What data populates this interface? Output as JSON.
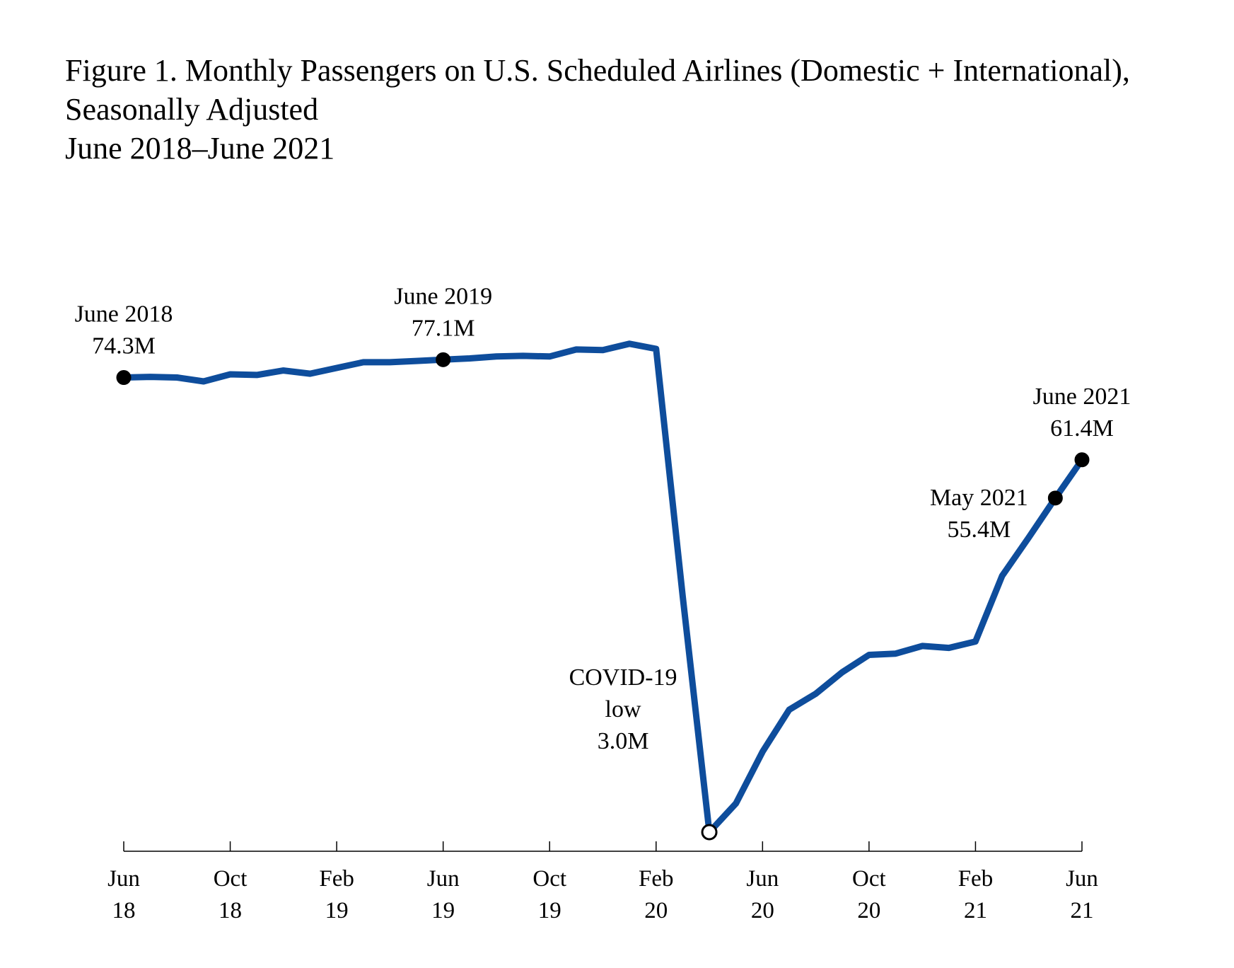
{
  "chart_data": {
    "type": "line",
    "title_lines": [
      "Figure 1. Monthly Passengers on U.S. Scheduled Airlines (Domestic + International),",
      "Seasonally Adjusted",
      "June 2018–June 2021"
    ],
    "xlabel": "",
    "ylabel": "",
    "unit": "millions of passengers",
    "ylim": [
      0,
      82
    ],
    "grid": false,
    "legend": "none",
    "series": [
      {
        "name": "Monthly passengers (seasonally adjusted)",
        "color": "#0e4d9c",
        "x": [
          "Jun 2018",
          "Jul 2018",
          "Aug 2018",
          "Sep 2018",
          "Oct 2018",
          "Nov 2018",
          "Dec 2018",
          "Jan 2019",
          "Feb 2019",
          "Mar 2019",
          "Apr 2019",
          "May 2019",
          "Jun 2019",
          "Jul 2019",
          "Aug 2019",
          "Sep 2019",
          "Oct 2019",
          "Nov 2019",
          "Dec 2019",
          "Jan 2020",
          "Feb 2020",
          "Mar 2020",
          "Apr 2020",
          "May 2020",
          "Jun 2020",
          "Jul 2020",
          "Aug 2020",
          "Sep 2020",
          "Oct 2020",
          "Nov 2020",
          "Dec 2020",
          "Jan 2021",
          "Feb 2021",
          "Mar 2021",
          "Apr 2021",
          "May 2021",
          "Jun 2021"
        ],
        "values": [
          74.3,
          74.4,
          74.3,
          73.7,
          74.8,
          74.7,
          75.4,
          74.9,
          75.8,
          76.7,
          76.7,
          76.9,
          77.1,
          77.3,
          77.6,
          77.7,
          77.6,
          78.7,
          78.6,
          79.6,
          78.8,
          40.0,
          3.0,
          7.5,
          15.6,
          22.2,
          24.7,
          28.1,
          30.8,
          31.0,
          32.2,
          31.9,
          32.9,
          43.2,
          49.2,
          55.4,
          61.4
        ]
      }
    ],
    "x_ticks": [
      {
        "month": "Jun",
        "year": "18",
        "index": 0
      },
      {
        "month": "Oct",
        "year": "18",
        "index": 4
      },
      {
        "month": "Feb",
        "year": "19",
        "index": 8
      },
      {
        "month": "Jun",
        "year": "19",
        "index": 12
      },
      {
        "month": "Oct",
        "year": "19",
        "index": 16
      },
      {
        "month": "Feb",
        "year": "20",
        "index": 20
      },
      {
        "month": "Jun",
        "year": "20",
        "index": 24
      },
      {
        "month": "Oct",
        "year": "20",
        "index": 28
      },
      {
        "month": "Feb",
        "year": "21",
        "index": 32
      },
      {
        "month": "Jun",
        "year": "21",
        "index": 36
      }
    ],
    "annotations": [
      {
        "index": 0,
        "lines": [
          "June 2018",
          "74.3M"
        ],
        "marker": "filled",
        "placement": "above"
      },
      {
        "index": 12,
        "lines": [
          "June 2019",
          "77.1M"
        ],
        "marker": "filled",
        "placement": "above"
      },
      {
        "index": 22,
        "lines": [
          "COVID-19",
          "low",
          "3.0M"
        ],
        "marker": "open",
        "placement": "upper-left"
      },
      {
        "index": 35,
        "lines": [
          "May 2021",
          "55.4M"
        ],
        "marker": "filled",
        "placement": "left"
      },
      {
        "index": 36,
        "lines": [
          "June 2021",
          "61.4M"
        ],
        "marker": "filled",
        "placement": "above"
      }
    ]
  }
}
